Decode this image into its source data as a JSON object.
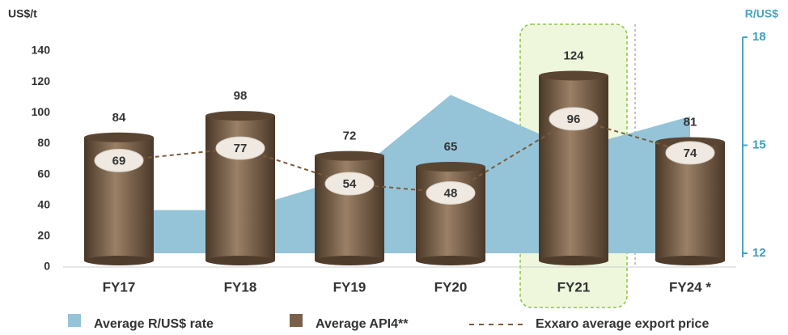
{
  "chart_data": {
    "type": "bar",
    "y_label": "US$/t",
    "y2_label": "R/US$",
    "categories": [
      "FY17",
      "FY18",
      "FY19",
      "FY20",
      "FY21",
      "FY24 *"
    ],
    "ylim": [
      0,
      140
    ],
    "yticks": [
      0,
      20,
      40,
      60,
      80,
      100,
      120,
      140
    ],
    "y2lim": [
      12,
      18
    ],
    "y2ticks": [
      12,
      15,
      18
    ],
    "highlight": "FY21",
    "series": [
      {
        "name": "Average R/US$ rate",
        "type": "area",
        "axis": "y2",
        "color": "#95c4d8",
        "values": [
          13.2,
          13.2,
          14.1,
          16.4,
          14.9,
          15.8
        ]
      },
      {
        "name": "Average API4**",
        "type": "bar",
        "color": "#7a6049",
        "values": [
          84,
          98,
          72,
          65,
          124,
          81
        ]
      },
      {
        "name": "Exxaro average export price",
        "type": "line",
        "style": "dashed",
        "color": "#7b5b3c",
        "values": [
          69,
          77,
          54,
          48,
          96,
          74
        ]
      }
    ]
  }
}
